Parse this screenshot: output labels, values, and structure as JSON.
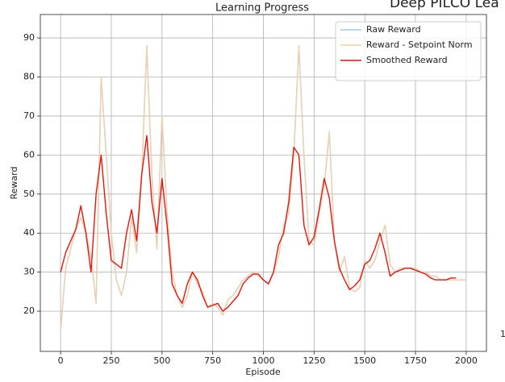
{
  "chart_data": {
    "type": "line",
    "title": "Learning Progress",
    "x_label": "Episode",
    "y_label": "Reward",
    "annotations": [
      "Deep PILCO Lea",
      "1"
    ],
    "x": [
      0,
      25,
      50,
      75,
      100,
      125,
      150,
      175,
      200,
      225,
      250,
      275,
      300,
      325,
      350,
      375,
      400,
      425,
      450,
      475,
      500,
      525,
      550,
      575,
      600,
      625,
      650,
      675,
      700,
      725,
      750,
      775,
      800,
      825,
      850,
      875,
      900,
      925,
      950,
      975,
      1000,
      1025,
      1050,
      1075,
      1100,
      1125,
      1150,
      1175,
      1200,
      1225,
      1250,
      1275,
      1300,
      1325,
      1350,
      1375,
      1400,
      1425,
      1450,
      1475,
      1500,
      1525,
      1550,
      1575,
      1600,
      1625,
      1650,
      1675,
      1700,
      1725,
      1750,
      1775,
      1800,
      1825,
      1850,
      1875,
      1900,
      1925,
      1950,
      1975,
      2000
    ],
    "series": [
      {
        "name": "Raw Reward",
        "color": "#a6c8e3",
        "values": [
          15,
          31,
          36,
          41,
          44,
          40,
          34,
          22,
          80,
          60,
          40,
          28,
          24,
          30,
          44,
          35,
          55,
          88,
          55,
          36,
          70,
          45,
          30,
          24,
          21,
          24,
          30,
          27,
          25,
          21,
          22,
          21,
          19,
          23,
          24,
          26,
          28,
          29,
          30,
          29,
          28,
          27,
          30,
          34,
          42,
          45,
          60,
          88,
          60,
          38,
          37,
          45,
          52,
          66,
          38,
          30,
          34,
          26,
          25,
          26,
          33,
          31,
          33,
          38,
          42,
          32,
          30,
          31,
          31,
          31,
          31,
          30,
          30,
          29,
          29,
          28,
          28,
          28,
          28,
          28,
          28
        ]
      },
      {
        "name": "Reward - Setpoint Norm",
        "color": "#f8cf9f",
        "values": [
          15,
          31,
          36,
          41,
          44,
          40,
          34,
          22,
          80,
          60,
          40,
          28,
          24,
          30,
          44,
          35,
          55,
          88,
          55,
          36,
          70,
          45,
          30,
          24,
          21,
          24,
          30,
          27,
          25,
          21,
          22,
          21,
          19,
          23,
          24,
          26,
          28,
          29,
          30,
          29,
          28,
          27,
          30,
          34,
          42,
          45,
          60,
          88,
          60,
          38,
          37,
          45,
          52,
          66,
          38,
          30,
          34,
          26,
          25,
          26,
          33,
          31,
          33,
          38,
          42,
          32,
          30,
          31,
          31,
          31,
          31,
          30,
          30,
          29,
          29,
          28,
          28,
          28,
          28,
          28,
          28
        ]
      },
      {
        "name": "Smoothed Reward",
        "color": "#e8160c",
        "values": [
          30,
          35,
          38,
          41,
          47,
          40,
          30,
          50,
          60,
          45,
          33,
          32,
          31,
          40,
          46,
          38,
          55,
          65,
          48,
          40,
          54,
          42,
          27,
          24,
          22,
          27,
          30,
          28,
          24,
          21,
          21.5,
          22,
          20,
          21,
          22.5,
          24,
          27,
          28.5,
          29.5,
          29.5,
          28,
          27,
          30,
          37,
          40,
          48,
          62,
          60,
          42,
          37,
          39,
          46,
          54,
          49,
          38,
          31,
          28,
          25.5,
          26.5,
          28,
          32,
          33,
          36,
          40,
          35,
          29,
          30,
          30.5,
          31,
          31,
          30.5,
          30,
          29.5,
          28.5,
          28,
          28,
          28,
          28.5,
          28.5,
          null,
          null
        ]
      }
    ],
    "xlim": [
      -100,
      2100
    ],
    "ylim": [
      9.7,
      96
    ],
    "xticks": [
      0,
      250,
      500,
      750,
      1000,
      1250,
      1500,
      1750,
      2000
    ],
    "yticks": [
      20,
      30,
      40,
      50,
      60,
      70,
      80,
      90
    ],
    "grid": true,
    "legend": "upper right"
  }
}
